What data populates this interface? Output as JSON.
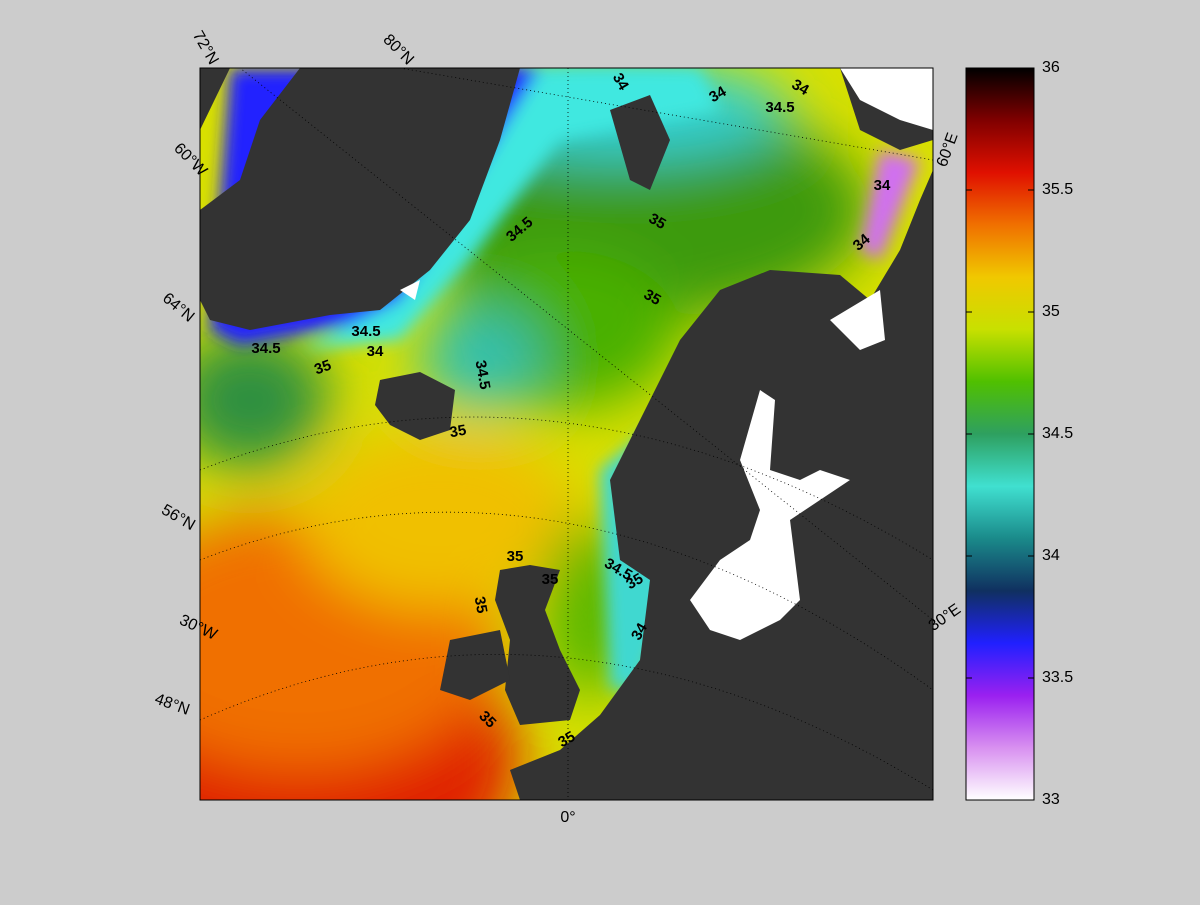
{
  "map": {
    "graticule_labels": [
      "72°N",
      "80°N",
      "60°W",
      "64°N",
      "56°N",
      "30°W",
      "48°N",
      "0°",
      "30°E",
      "60°E"
    ],
    "contour_labels": [
      34,
      34,
      34.5,
      34,
      34,
      34,
      35,
      34.5,
      35,
      34.5,
      34.5,
      34,
      35,
      34.5,
      35,
      35,
      35,
      35,
      34.5,
      35,
      34,
      35,
      35
    ],
    "colorbar": {
      "lim": [
        33,
        36
      ],
      "ticks": [
        33,
        33.5,
        34,
        34.5,
        35,
        35.5,
        36
      ],
      "colors": [
        "#ffffff",
        "#d890f0",
        "#9a20f0",
        "#2020ff",
        "#103060",
        "#1a8a8a",
        "#40e0d0",
        "#2ea060",
        "#50c000",
        "#c8e000",
        "#f0c800",
        "#f07000",
        "#e01000",
        "#800000",
        "#000000"
      ]
    }
  }
}
